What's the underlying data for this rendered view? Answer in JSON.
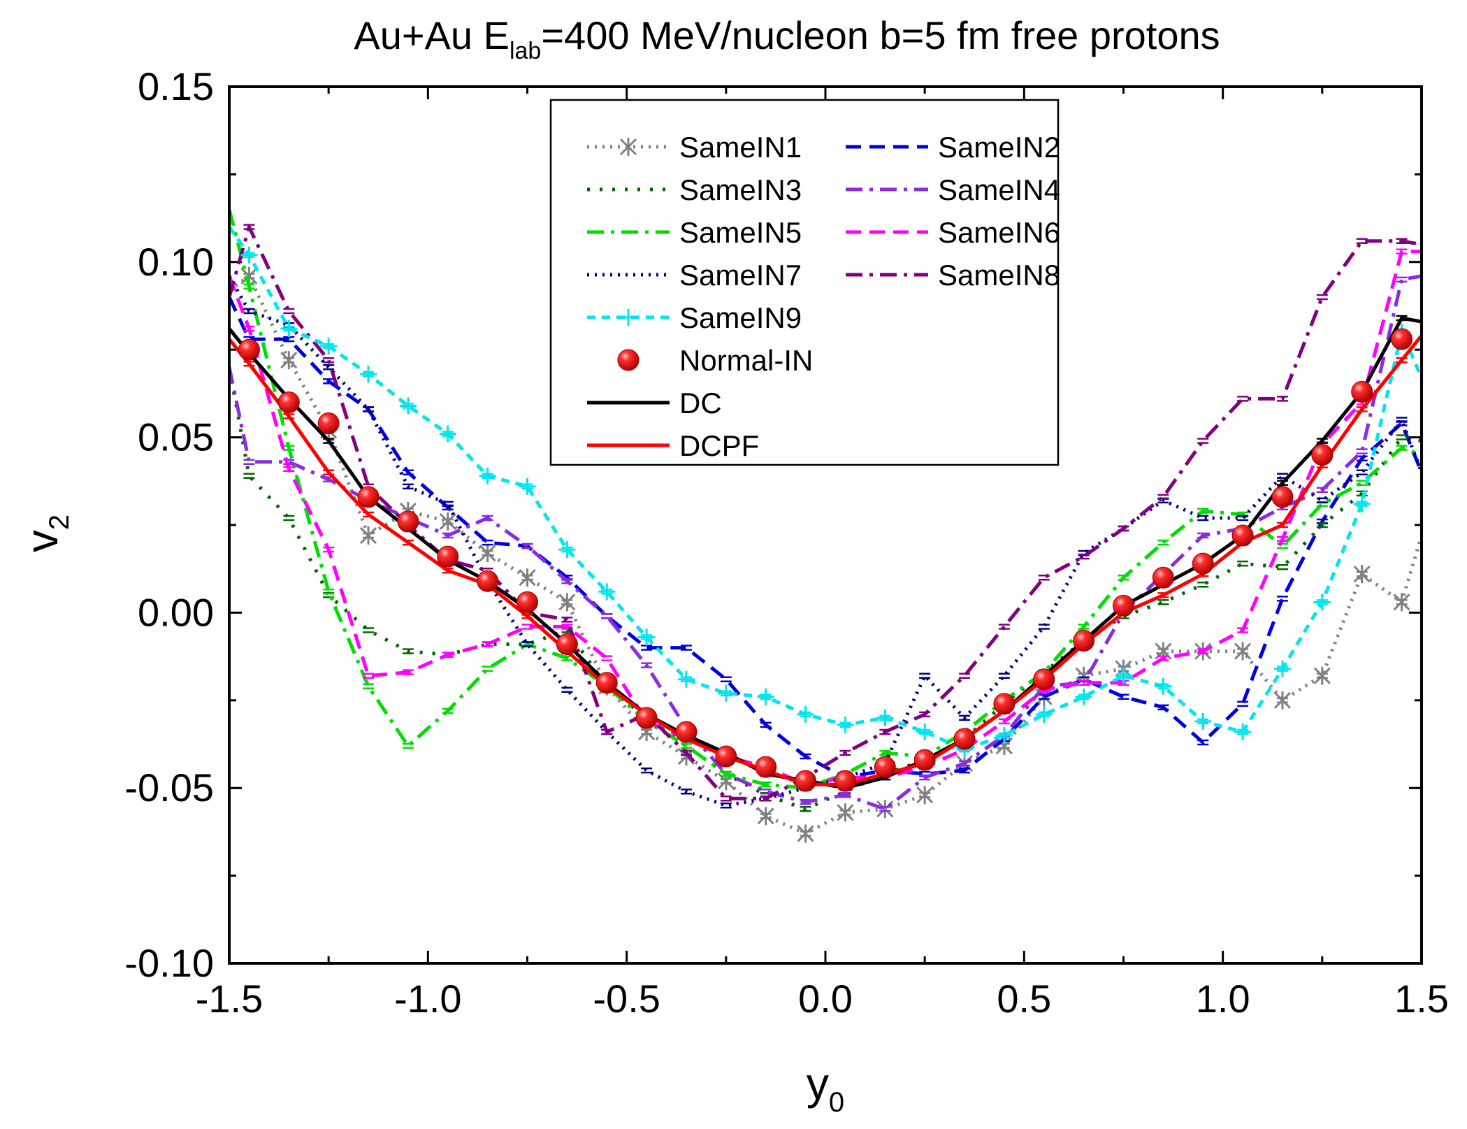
{
  "chart_data": {
    "type": "line",
    "title": {
      "main": "Au+Au  E",
      "sub": "lab",
      "rest": "=400 MeV/nucleon  b=5 fm  free protons"
    },
    "xlabel": {
      "main": "y",
      "sub": "0"
    },
    "ylabel": {
      "main": "v",
      "sub": "2"
    },
    "xlim": [
      -1.5,
      1.5
    ],
    "ylim": [
      -0.1,
      0.15
    ],
    "x_ticks": [
      "-1.5",
      "-1.0",
      "-0.5",
      "0.0",
      "0.5",
      "1.0",
      "1.5"
    ],
    "y_ticks": [
      "0.15",
      "0.10",
      "0.05",
      "0.00",
      "-0.05",
      "-0.10"
    ],
    "legend": [
      {
        "label": "SameIN1",
        "color": "#808080",
        "style": "dot",
        "marker": "x"
      },
      {
        "label": "SameIN2",
        "color": "#0000dd",
        "style": "dash"
      },
      {
        "label": "SameIN3",
        "color": "#006600",
        "style": "sparsedot"
      },
      {
        "label": "SameIN4",
        "color": "#8a2be2",
        "style": "dashdot"
      },
      {
        "label": "SameIN5",
        "color": "#00dd00",
        "style": "dashdot"
      },
      {
        "label": "SameIN6",
        "color": "#ff00ff",
        "style": "dash"
      },
      {
        "label": "SameIN7",
        "color": "#000080",
        "style": "dot"
      },
      {
        "label": "SameIN8",
        "color": "#800080",
        "style": "dashdot"
      },
      {
        "label": "SameIN9",
        "color": "#00e5ee",
        "style": "shortdash",
        "marker": "plus"
      },
      {
        "label": "Normal-IN",
        "color": "#ff0000",
        "style": "none",
        "marker": "sphere"
      },
      {
        "label": "DC",
        "color": "#000000",
        "style": "solid"
      },
      {
        "label": "DCPF",
        "color": "#ff0000",
        "style": "solid"
      }
    ],
    "x": [
      -1.5,
      -1.45,
      -1.35,
      -1.25,
      -1.15,
      -1.05,
      -0.95,
      -0.85,
      -0.75,
      -0.65,
      -0.55,
      -0.45,
      -0.35,
      -0.25,
      -0.15,
      -0.05,
      0.05,
      0.15,
      0.25,
      0.35,
      0.45,
      0.55,
      0.65,
      0.75,
      0.85,
      0.95,
      1.05,
      1.15,
      1.25,
      1.35,
      1.45,
      1.5
    ],
    "series": [
      {
        "name": "SameIN1",
        "values": [
          0.092,
          0.096,
          0.072,
          0.052,
          0.022,
          0.029,
          0.026,
          0.017,
          0.01,
          0.003,
          -0.021,
          -0.034,
          -0.041,
          -0.048,
          -0.058,
          -0.063,
          -0.057,
          -0.056,
          -0.052,
          -0.043,
          -0.038,
          -0.024,
          -0.018,
          -0.016,
          -0.011,
          -0.011,
          -0.011,
          -0.025,
          -0.018,
          0.011,
          0.003,
          0.022
        ]
      },
      {
        "name": "SameIN2",
        "values": [
          0.09,
          0.078,
          0.078,
          0.066,
          0.058,
          0.04,
          0.03,
          0.02,
          0.019,
          0.01,
          -0.001,
          -0.01,
          -0.01,
          -0.019,
          -0.032,
          -0.041,
          -0.047,
          -0.045,
          -0.046,
          -0.045,
          -0.036,
          -0.024,
          -0.019,
          -0.024,
          -0.027,
          -0.037,
          -0.026,
          0.004,
          0.026,
          0.044,
          0.054,
          0.04
        ]
      },
      {
        "name": "SameIN3",
        "values": [
          0.07,
          0.039,
          0.027,
          0.005,
          -0.005,
          -0.011,
          -0.012,
          -0.009,
          -0.009,
          -0.005,
          -0.021,
          -0.03,
          -0.038,
          -0.046,
          -0.052,
          -0.056,
          -0.051,
          -0.046,
          -0.042,
          -0.036,
          -0.026,
          -0.017,
          -0.008,
          -0.001,
          0.003,
          0.008,
          0.014,
          0.013,
          0.025,
          0.034,
          0.05,
          0.049
        ]
      },
      {
        "name": "SameIN4",
        "values": [
          0.07,
          0.043,
          0.043,
          0.038,
          0.032,
          0.027,
          0.022,
          0.027,
          0.019,
          0.009,
          -0.001,
          -0.015,
          -0.033,
          -0.046,
          -0.051,
          -0.054,
          -0.052,
          -0.056,
          -0.047,
          -0.043,
          -0.035,
          -0.021,
          -0.02,
          0.0,
          0.011,
          0.022,
          0.024,
          0.03,
          0.035,
          0.046,
          0.095,
          0.096
        ]
      },
      {
        "name": "SameIN5",
        "values": [
          0.115,
          0.093,
          0.047,
          0.006,
          -0.021,
          -0.038,
          -0.028,
          -0.016,
          -0.009,
          -0.013,
          -0.021,
          -0.031,
          -0.038,
          -0.046,
          -0.049,
          -0.05,
          -0.046,
          -0.04,
          -0.041,
          -0.034,
          -0.025,
          -0.017,
          -0.004,
          0.01,
          0.02,
          0.029,
          0.028,
          0.019,
          0.031,
          0.037,
          0.047,
          0.045
        ]
      },
      {
        "name": "SameIN6",
        "values": [
          0.096,
          0.081,
          0.041,
          0.018,
          -0.018,
          -0.017,
          -0.012,
          -0.009,
          -0.004,
          -0.004,
          -0.013,
          -0.031,
          -0.036,
          -0.041,
          -0.044,
          -0.049,
          -0.047,
          -0.047,
          -0.044,
          -0.039,
          -0.031,
          -0.022,
          -0.02,
          -0.02,
          -0.013,
          -0.011,
          -0.005,
          0.021,
          0.048,
          0.06,
          0.103,
          0.103
        ]
      },
      {
        "name": "SameIN7",
        "values": [
          0.096,
          0.086,
          0.082,
          0.07,
          0.058,
          0.036,
          0.031,
          0.009,
          -0.009,
          -0.022,
          -0.034,
          -0.045,
          -0.051,
          -0.055,
          -0.053,
          -0.05,
          -0.047,
          -0.043,
          -0.018,
          -0.03,
          -0.018,
          -0.004,
          0.017,
          0.024,
          0.032,
          0.027,
          0.027,
          0.039,
          0.032,
          0.04,
          0.055,
          0.04
        ]
      },
      {
        "name": "SameIN8",
        "values": [
          0.09,
          0.11,
          0.086,
          0.072,
          0.036,
          0.025,
          0.015,
          0.012,
          0.0,
          -0.002,
          -0.034,
          -0.029,
          -0.04,
          -0.053,
          -0.053,
          -0.047,
          -0.04,
          -0.034,
          -0.029,
          -0.018,
          -0.004,
          0.01,
          0.016,
          0.024,
          0.033,
          0.049,
          0.061,
          0.061,
          0.09,
          0.106,
          0.106,
          0.105
        ]
      },
      {
        "name": "SameIN9",
        "values": [
          0.11,
          0.102,
          0.081,
          0.076,
          0.068,
          0.059,
          0.051,
          0.039,
          0.036,
          0.018,
          0.006,
          -0.007,
          -0.019,
          -0.023,
          -0.024,
          -0.029,
          -0.032,
          -0.03,
          -0.034,
          -0.039,
          -0.035,
          -0.029,
          -0.024,
          -0.018,
          -0.021,
          -0.031,
          -0.034,
          -0.016,
          0.003,
          0.031,
          0.08,
          0.067
        ]
      },
      {
        "name": "DC",
        "values": [
          0.081,
          0.074,
          0.061,
          0.049,
          0.033,
          0.024,
          0.015,
          0.009,
          0.001,
          -0.009,
          -0.02,
          -0.029,
          -0.035,
          -0.04,
          -0.046,
          -0.048,
          -0.05,
          -0.047,
          -0.042,
          -0.036,
          -0.028,
          -0.018,
          -0.008,
          0.002,
          0.008,
          0.014,
          0.022,
          0.037,
          0.049,
          0.063,
          0.084,
          0.083
        ]
      },
      {
        "name": "DCPF",
        "values": [
          0.078,
          0.071,
          0.056,
          0.04,
          0.028,
          0.02,
          0.012,
          0.008,
          -0.001,
          -0.011,
          -0.021,
          -0.029,
          -0.036,
          -0.041,
          -0.045,
          -0.049,
          -0.049,
          -0.046,
          -0.043,
          -0.036,
          -0.028,
          -0.019,
          -0.009,
          0.0,
          0.005,
          0.011,
          0.02,
          0.025,
          0.042,
          0.058,
          0.072,
          0.079
        ]
      }
    ],
    "points": {
      "name": "Normal-IN",
      "x": [
        -1.45,
        -1.35,
        -1.25,
        -1.15,
        -1.05,
        -0.95,
        -0.85,
        -0.75,
        -0.65,
        -0.55,
        -0.45,
        -0.35,
        -0.25,
        -0.15,
        -0.05,
        0.05,
        0.15,
        0.25,
        0.35,
        0.45,
        0.55,
        0.65,
        0.75,
        0.85,
        0.95,
        1.05,
        1.15,
        1.25,
        1.35,
        1.45
      ],
      "values": [
        0.075,
        0.06,
        0.054,
        0.033,
        0.026,
        0.016,
        0.009,
        0.003,
        -0.009,
        -0.02,
        -0.03,
        -0.034,
        -0.041,
        -0.044,
        -0.048,
        -0.048,
        -0.044,
        -0.042,
        -0.036,
        -0.026,
        -0.019,
        -0.008,
        0.002,
        0.01,
        0.014,
        0.022,
        0.033,
        0.045,
        0.063,
        0.078
      ]
    }
  }
}
